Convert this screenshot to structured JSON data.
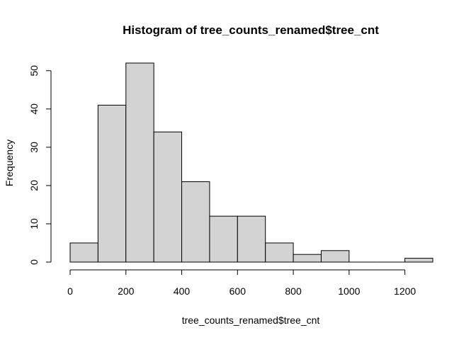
{
  "chart_data": {
    "type": "bar",
    "title": "Histogram of tree_counts_renamed$tree_cnt",
    "xlabel": "tree_counts_renamed$tree_cnt",
    "ylabel": "Frequency",
    "bins": [
      {
        "start": 0,
        "end": 100,
        "count": 5
      },
      {
        "start": 100,
        "end": 200,
        "count": 41
      },
      {
        "start": 200,
        "end": 300,
        "count": 52
      },
      {
        "start": 300,
        "end": 400,
        "count": 34
      },
      {
        "start": 400,
        "end": 500,
        "count": 21
      },
      {
        "start": 500,
        "end": 600,
        "count": 12
      },
      {
        "start": 600,
        "end": 700,
        "count": 12
      },
      {
        "start": 700,
        "end": 800,
        "count": 5
      },
      {
        "start": 800,
        "end": 900,
        "count": 2
      },
      {
        "start": 900,
        "end": 1000,
        "count": 3
      },
      {
        "start": 1000,
        "end": 1100,
        "count": 0
      },
      {
        "start": 1100,
        "end": 1200,
        "count": 0
      },
      {
        "start": 1200,
        "end": 1300,
        "count": 1
      }
    ],
    "x_ticks": [
      0,
      200,
      400,
      600,
      800,
      1000,
      1200
    ],
    "y_ticks": [
      0,
      10,
      20,
      30,
      40,
      50
    ],
    "xlim": [
      0,
      1300
    ],
    "ylim": [
      0,
      52
    ],
    "grid": false,
    "colors": {
      "bar_fill": "#d3d3d3",
      "bar_stroke": "#000000",
      "axis": "#000000",
      "background": "#ffffff"
    }
  }
}
